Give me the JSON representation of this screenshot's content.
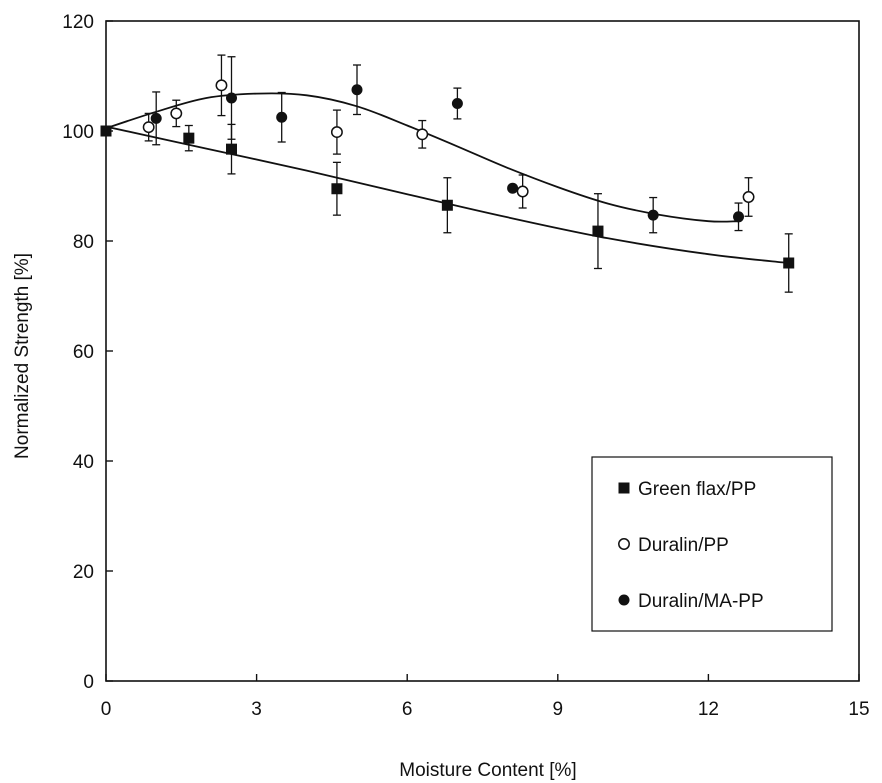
{
  "chart_data": {
    "type": "scatter",
    "title": "",
    "xlabel": "Moisture Content [%]",
    "ylabel": "Normalized Strength [%]",
    "xlim": [
      0,
      15
    ],
    "ylim": [
      0,
      120
    ],
    "xticks": [
      "0",
      "3",
      "6",
      "9",
      "12",
      "15"
    ],
    "yticks": [
      "0",
      "20",
      "40",
      "60",
      "80",
      "100",
      "120"
    ],
    "grid": false,
    "legend_position": "lower-right",
    "series": [
      {
        "name": "Green flax/PP",
        "marker": "filled-square",
        "points": [
          {
            "x": 0,
            "y": 100,
            "err": 0
          },
          {
            "x": 1.65,
            "y": 98.7,
            "err": 2.3
          },
          {
            "x": 2.5,
            "y": 96.7,
            "err": 4.5
          },
          {
            "x": 4.6,
            "y": 89.5,
            "err": 4.8
          },
          {
            "x": 6.8,
            "y": 86.5,
            "err": 5.0
          },
          {
            "x": 9.8,
            "y": 81.8,
            "err": 6.8
          },
          {
            "x": 13.6,
            "y": 76.0,
            "err": 5.3
          }
        ],
        "fit": [
          [
            0,
            100.8
          ],
          [
            2,
            96.8
          ],
          [
            4,
            92.8
          ],
          [
            6,
            88.5
          ],
          [
            8,
            84.3
          ],
          [
            10,
            80.5
          ],
          [
            12,
            77.6
          ],
          [
            13.6,
            76.0
          ]
        ]
      },
      {
        "name": "Duralin/PP",
        "marker": "open-circle",
        "points": [
          {
            "x": 0.85,
            "y": 100.7,
            "err": 2.5
          },
          {
            "x": 1.4,
            "y": 103.2,
            "err": 2.4
          },
          {
            "x": 2.3,
            "y": 108.3,
            "err": 5.5
          },
          {
            "x": 4.6,
            "y": 99.8,
            "err": 4.0
          },
          {
            "x": 6.3,
            "y": 99.4,
            "err": 2.5
          },
          {
            "x": 8.3,
            "y": 89.0,
            "err": 3.0
          },
          {
            "x": 12.8,
            "y": 88.0,
            "err": 3.5
          }
        ]
      },
      {
        "name": "Duralin/MA-PP",
        "marker": "filled-circle",
        "points": [
          {
            "x": 1.0,
            "y": 102.3,
            "err": 4.8
          },
          {
            "x": 2.5,
            "y": 106.0,
            "err": 7.5
          },
          {
            "x": 3.5,
            "y": 102.5,
            "err": 4.5
          },
          {
            "x": 5.0,
            "y": 107.5,
            "err": 4.5
          },
          {
            "x": 7.0,
            "y": 105.0,
            "err": 2.8
          },
          {
            "x": 8.1,
            "y": 89.6,
            "err": 0
          },
          {
            "x": 10.9,
            "y": 84.7,
            "err": 3.2
          },
          {
            "x": 12.6,
            "y": 84.4,
            "err": 2.5
          }
        ],
        "fit": [
          [
            0,
            100.5
          ],
          [
            1,
            103.5
          ],
          [
            2,
            106.0
          ],
          [
            3,
            106.8
          ],
          [
            4,
            106.5
          ],
          [
            5,
            104.5
          ],
          [
            6,
            101.0
          ],
          [
            7,
            97.2
          ],
          [
            8,
            93.3
          ],
          [
            9,
            89.8
          ],
          [
            10,
            86.8
          ],
          [
            11,
            84.8
          ],
          [
            12,
            83.6
          ],
          [
            12.6,
            83.6
          ]
        ]
      }
    ]
  }
}
